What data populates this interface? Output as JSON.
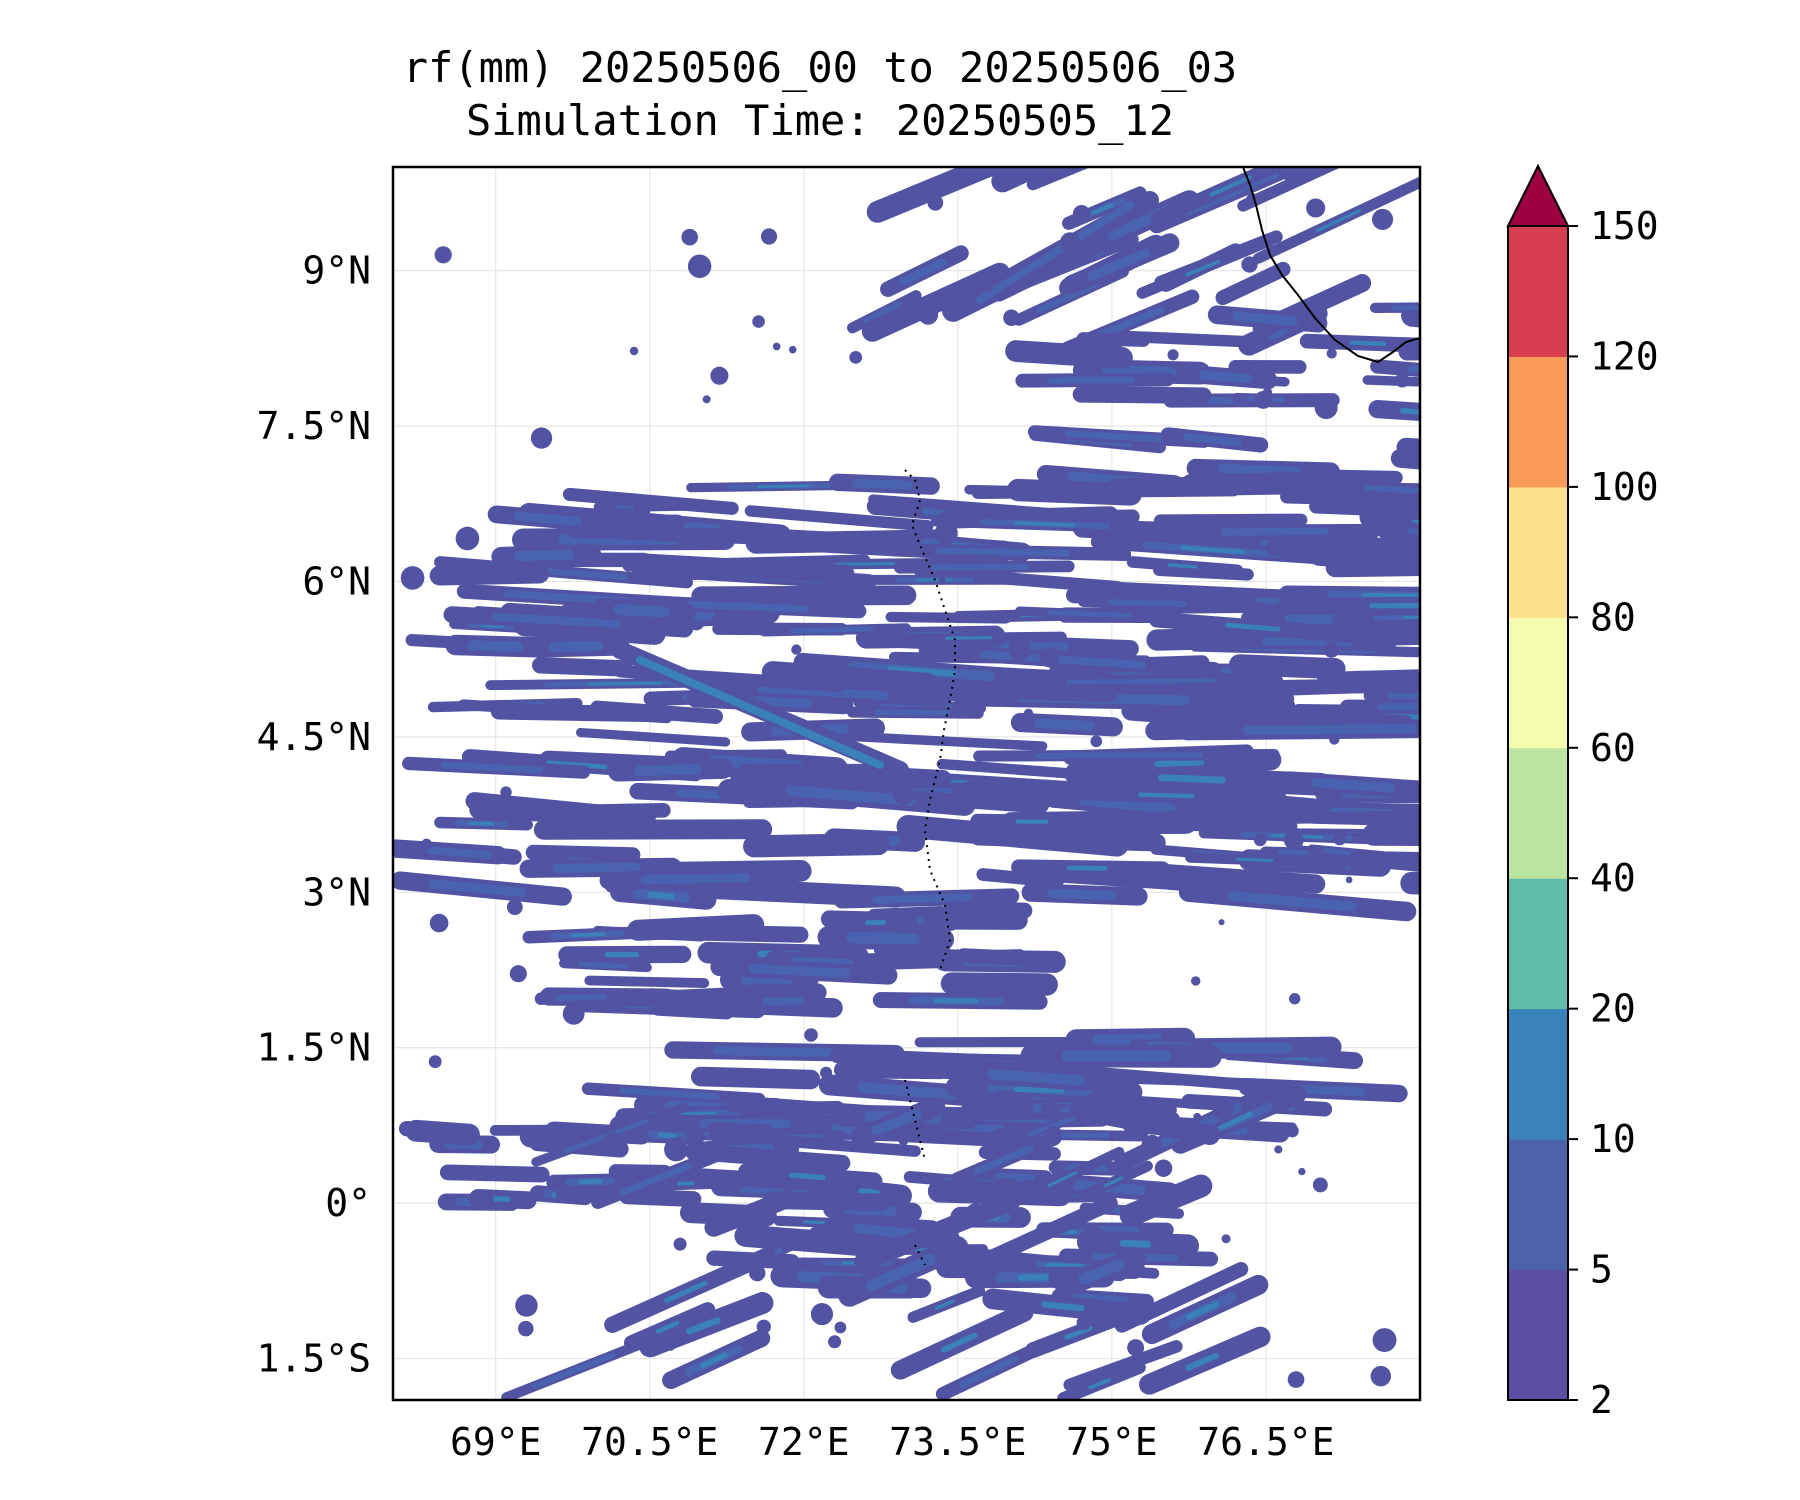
{
  "title": {
    "line1": "rf(mm) 20250506_00 to 20250506_03",
    "line2": "Simulation Time: 20250505_12"
  },
  "map": {
    "lon_range": [
      68.0,
      78.0
    ],
    "lat_range": [
      -1.9,
      10.0
    ],
    "gridlines": true,
    "lon_ticks": [
      {
        "value": 69.0,
        "label": "69°E"
      },
      {
        "value": 70.5,
        "label": "70.5°E"
      },
      {
        "value": 72.0,
        "label": "72°E"
      },
      {
        "value": 73.5,
        "label": "73.5°E"
      },
      {
        "value": 75.0,
        "label": "75°E"
      },
      {
        "value": 76.5,
        "label": "76.5°E"
      }
    ],
    "lat_ticks": [
      {
        "value": 9.0,
        "label": "9°N"
      },
      {
        "value": 7.5,
        "label": "7.5°N"
      },
      {
        "value": 6.0,
        "label": "6°N"
      },
      {
        "value": 4.5,
        "label": "4.5°N"
      },
      {
        "value": 3.0,
        "label": "3°N"
      },
      {
        "value": 1.5,
        "label": "1.5°N"
      },
      {
        "value": 0.0,
        "label": "0°"
      },
      {
        "value": -1.5,
        "label": "1.5°S"
      }
    ],
    "coastline_color": "#000000",
    "rain_colors": {
      "light": "#5254a3",
      "mid": "#4a63b0",
      "heavy": "#3a80b9"
    }
  },
  "colorbar": {
    "extend": "max",
    "levels": [
      {
        "value": 2,
        "label": "2"
      },
      {
        "value": 5,
        "label": "5"
      },
      {
        "value": 10,
        "label": "10"
      },
      {
        "value": 20,
        "label": "20"
      },
      {
        "value": 40,
        "label": "40"
      },
      {
        "value": 60,
        "label": "60"
      },
      {
        "value": 80,
        "label": "80"
      },
      {
        "value": 100,
        "label": "100"
      },
      {
        "value": 120,
        "label": "120"
      },
      {
        "value": 150,
        "label": "150"
      }
    ],
    "colors": [
      "#5e4fa2",
      "#4b62ad",
      "#3a82bb",
      "#62bda8",
      "#bde3a0",
      "#f5fbaf",
      "#fde08b",
      "#f99a58",
      "#d63e4f"
    ],
    "extend_color": "#9e0142"
  }
}
